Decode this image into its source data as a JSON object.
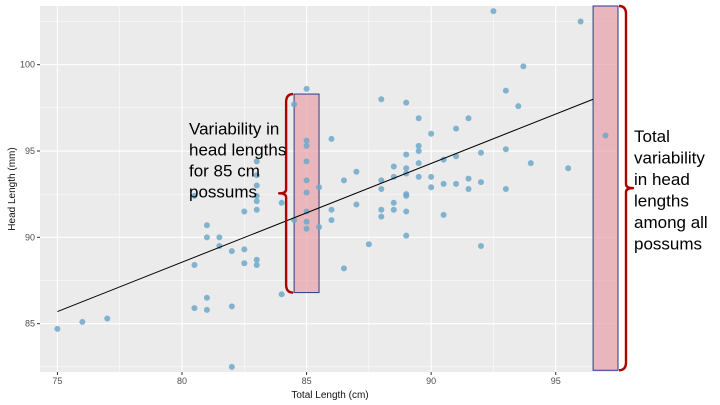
{
  "chart_data": {
    "type": "scatter",
    "title": "",
    "xlabel": "Total Length (cm)",
    "ylabel": "Head Length (mm)",
    "xlim": [
      74.3,
      97.5
    ],
    "ylim": [
      82.2,
      103.4
    ],
    "x_ticks": [
      75,
      80,
      85,
      90,
      95
    ],
    "y_ticks": [
      85,
      90,
      95,
      100
    ],
    "grid": true,
    "point_color": "#6fa8c9",
    "panel_color": "#ebebeb",
    "points": [
      [
        75,
        84.7
      ],
      [
        76,
        85.1
      ],
      [
        77,
        85.3
      ],
      [
        80.5,
        85.9
      ],
      [
        80.5,
        88.4
      ],
      [
        80.5,
        92.4
      ],
      [
        81,
        85.8
      ],
      [
        81,
        86.5
      ],
      [
        81,
        90
      ],
      [
        81,
        90.7
      ],
      [
        81.5,
        90
      ],
      [
        81.5,
        89.5
      ],
      [
        82,
        82.5
      ],
      [
        82,
        86
      ],
      [
        82,
        89.2
      ],
      [
        82.5,
        88.5
      ],
      [
        82.5,
        89.3
      ],
      [
        82.5,
        91.5
      ],
      [
        83,
        88.4
      ],
      [
        83,
        88.7
      ],
      [
        83,
        91.6
      ],
      [
        83,
        92.1
      ],
      [
        83,
        92.4
      ],
      [
        83,
        93
      ],
      [
        83,
        93.6
      ],
      [
        83,
        94.4
      ],
      [
        84,
        86.7
      ],
      [
        84,
        92
      ],
      [
        84.5,
        91
      ],
      [
        84.5,
        97.7
      ],
      [
        85,
        90.5
      ],
      [
        85,
        90.9
      ],
      [
        85,
        91.5
      ],
      [
        85,
        92.6
      ],
      [
        85,
        93.3
      ],
      [
        85,
        94.4
      ],
      [
        85,
        95.3
      ],
      [
        85,
        95.6
      ],
      [
        85,
        98.6
      ],
      [
        85.5,
        90.6
      ],
      [
        85.5,
        92.9
      ],
      [
        86,
        91
      ],
      [
        86,
        91.6
      ],
      [
        86,
        95.7
      ],
      [
        86.5,
        88.2
      ],
      [
        86.5,
        93.3
      ],
      [
        87,
        91.9
      ],
      [
        87,
        93.8
      ],
      [
        87.5,
        89.6
      ],
      [
        88,
        91.6
      ],
      [
        88,
        91.2
      ],
      [
        88,
        92.8
      ],
      [
        88,
        93.3
      ],
      [
        88,
        98
      ],
      [
        88.5,
        91.6
      ],
      [
        88.5,
        92
      ],
      [
        88.5,
        93.5
      ],
      [
        88.5,
        94.1
      ],
      [
        89,
        90.1
      ],
      [
        89,
        91.5
      ],
      [
        89,
        92.4
      ],
      [
        89,
        92.5
      ],
      [
        89,
        93.7
      ],
      [
        89,
        94
      ],
      [
        89,
        94.8
      ],
      [
        89,
        97.8
      ],
      [
        89.5,
        93.5
      ],
      [
        89.5,
        94.3
      ],
      [
        89.5,
        95
      ],
      [
        89.5,
        95.3
      ],
      [
        89.5,
        96.9
      ],
      [
        90,
        92.9
      ],
      [
        90,
        93.5
      ],
      [
        90,
        96
      ],
      [
        90.5,
        91.3
      ],
      [
        90.5,
        93.1
      ],
      [
        90.5,
        94.5
      ],
      [
        91,
        93.1
      ],
      [
        91,
        94.7
      ],
      [
        91,
        96.3
      ],
      [
        91.5,
        92.8
      ],
      [
        91.5,
        93.4
      ],
      [
        91.5,
        96.9
      ],
      [
        92,
        89.5
      ],
      [
        92,
        93.2
      ],
      [
        92,
        94.9
      ],
      [
        92.5,
        103.1
      ],
      [
        93,
        92.8
      ],
      [
        93,
        95.1
      ],
      [
        93,
        98.5
      ],
      [
        93.5,
        97.6
      ],
      [
        93.7,
        99.9
      ],
      [
        94,
        94.3
      ],
      [
        95.5,
        94
      ],
      [
        96,
        102.5
      ],
      [
        97,
        95.9
      ]
    ],
    "fit_line": {
      "x": [
        75,
        96.5
      ],
      "y": [
        85.7,
        98.0
      ],
      "color": "#000000"
    },
    "highlight_columns": [
      {
        "x_range": [
          84.5,
          85.5
        ],
        "y_range": [
          86.8,
          98.3
        ]
      },
      {
        "x_range": [
          96.5,
          97.5
        ],
        "y_range": [
          82.3,
          103.4
        ]
      }
    ],
    "highlight_fill": "#e8a0a6",
    "highlight_stroke": "#2b3a8a",
    "brace_color": "#b00000",
    "annotations": [
      {
        "lines": [
          "Variability in",
          "head lengths",
          "for 85 cm",
          "possums"
        ]
      },
      {
        "lines": [
          "Total",
          "variability",
          "in head",
          "lengths",
          "among all",
          "possums"
        ]
      }
    ]
  }
}
